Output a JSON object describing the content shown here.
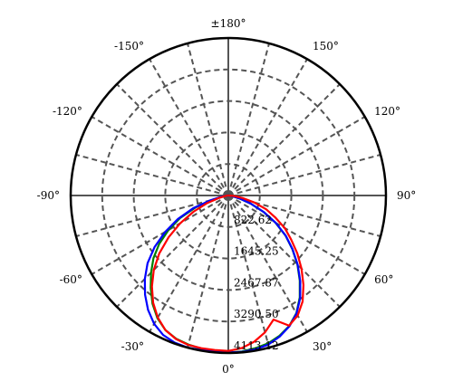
{
  "chart_data": {
    "type": "polar-line",
    "title": "",
    "angle_unit": "degrees",
    "zero_direction": "bottom",
    "angle_ticks": [
      {
        "angle": 180,
        "label": "±180°"
      },
      {
        "angle": 150,
        "label": "150°"
      },
      {
        "angle": 120,
        "label": "120°"
      },
      {
        "angle": 90,
        "label": "90°"
      },
      {
        "angle": 60,
        "label": "60°"
      },
      {
        "angle": 30,
        "label": "30°"
      },
      {
        "angle": 0,
        "label": "0°"
      },
      {
        "angle": -30,
        "label": "-30°"
      },
      {
        "angle": -60,
        "label": "-60°"
      },
      {
        "angle": -90,
        "label": "-90°"
      },
      {
        "angle": -120,
        "label": "-120°"
      },
      {
        "angle": -150,
        "label": "-150°"
      }
    ],
    "radial_ticks": [
      {
        "value": 822.62,
        "label": "822.62"
      },
      {
        "value": 1645.25,
        "label": "1645.25"
      },
      {
        "value": 2467.87,
        "label": "2467.87"
      },
      {
        "value": 3290.5,
        "label": "3290.50"
      },
      {
        "value": 4113.12,
        "label": "4113.12"
      }
    ],
    "rmax": 4113.12,
    "grid": true,
    "grid_style": "dashed",
    "series": [
      {
        "color": "#008000",
        "points": [
          [
            -90,
            0
          ],
          [
            -85,
            35
          ],
          [
            -80,
            150
          ],
          [
            -75,
            420
          ],
          [
            -70,
            900
          ],
          [
            -65,
            1380
          ],
          [
            -60,
            1800
          ],
          [
            -55,
            2200
          ],
          [
            -50,
            2550
          ],
          [
            -45,
            2850
          ],
          [
            -40,
            3150
          ],
          [
            -35,
            3450
          ],
          [
            -30,
            3700
          ],
          [
            -25,
            3880
          ],
          [
            -20,
            3980
          ],
          [
            -15,
            4030
          ],
          [
            -10,
            4060
          ],
          [
            -5,
            4080
          ],
          [
            0,
            4100
          ],
          [
            5,
            4090
          ],
          [
            10,
            4050
          ],
          [
            15,
            4000
          ],
          [
            20,
            3900
          ],
          [
            25,
            3760
          ],
          [
            30,
            3550
          ],
          [
            35,
            3250
          ],
          [
            40,
            2900
          ],
          [
            45,
            2550
          ],
          [
            50,
            2180
          ],
          [
            55,
            1820
          ],
          [
            60,
            1420
          ],
          [
            65,
            1010
          ],
          [
            70,
            620
          ],
          [
            75,
            300
          ],
          [
            80,
            110
          ],
          [
            85,
            30
          ],
          [
            90,
            0
          ]
        ]
      },
      {
        "color": "#0000ff",
        "points": [
          [
            -90,
            0
          ],
          [
            -85,
            40
          ],
          [
            -80,
            180
          ],
          [
            -75,
            480
          ],
          [
            -70,
            980
          ],
          [
            -65,
            1450
          ],
          [
            -60,
            1900
          ],
          [
            -55,
            2350
          ],
          [
            -50,
            2750
          ],
          [
            -45,
            3080
          ],
          [
            -40,
            3380
          ],
          [
            -35,
            3650
          ],
          [
            -30,
            3870
          ],
          [
            -25,
            4020
          ],
          [
            -20,
            4090
          ],
          [
            -15,
            4110
          ],
          [
            -10,
            4100
          ],
          [
            -5,
            4090
          ],
          [
            0,
            4100
          ],
          [
            5,
            4100
          ],
          [
            10,
            4080
          ],
          [
            15,
            4030
          ],
          [
            20,
            3920
          ],
          [
            25,
            3770
          ],
          [
            30,
            3560
          ],
          [
            35,
            3270
          ],
          [
            40,
            2920
          ],
          [
            45,
            2560
          ],
          [
            50,
            2190
          ],
          [
            55,
            1830
          ],
          [
            60,
            1430
          ],
          [
            65,
            1020
          ],
          [
            70,
            630
          ],
          [
            75,
            310
          ],
          [
            80,
            115
          ],
          [
            85,
            35
          ],
          [
            90,
            0
          ]
        ]
      },
      {
        "color": "#ff0000",
        "points": [
          [
            -90,
            0
          ],
          [
            -85,
            25
          ],
          [
            -80,
            90
          ],
          [
            -75,
            260
          ],
          [
            -70,
            600
          ],
          [
            -65,
            1000
          ],
          [
            -60,
            1450
          ],
          [
            -55,
            1900
          ],
          [
            -50,
            2350
          ],
          [
            -45,
            2750
          ],
          [
            -40,
            3100
          ],
          [
            -35,
            3420
          ],
          [
            -30,
            3680
          ],
          [
            -25,
            3880
          ],
          [
            -20,
            3990
          ],
          [
            -15,
            4040
          ],
          [
            -10,
            4050
          ],
          [
            -5,
            4050
          ],
          [
            0,
            4060
          ],
          [
            5,
            4000
          ],
          [
            10,
            3880
          ],
          [
            15,
            3700
          ],
          [
            20,
            3450
          ],
          [
            25,
            3750
          ],
          [
            30,
            3620
          ],
          [
            35,
            3380
          ],
          [
            40,
            3050
          ],
          [
            45,
            2700
          ],
          [
            50,
            2350
          ],
          [
            55,
            2000
          ],
          [
            60,
            1700
          ],
          [
            65,
            1350
          ],
          [
            70,
            1050
          ],
          [
            75,
            700
          ],
          [
            80,
            380
          ],
          [
            85,
            150
          ],
          [
            90,
            0
          ]
        ]
      }
    ]
  }
}
